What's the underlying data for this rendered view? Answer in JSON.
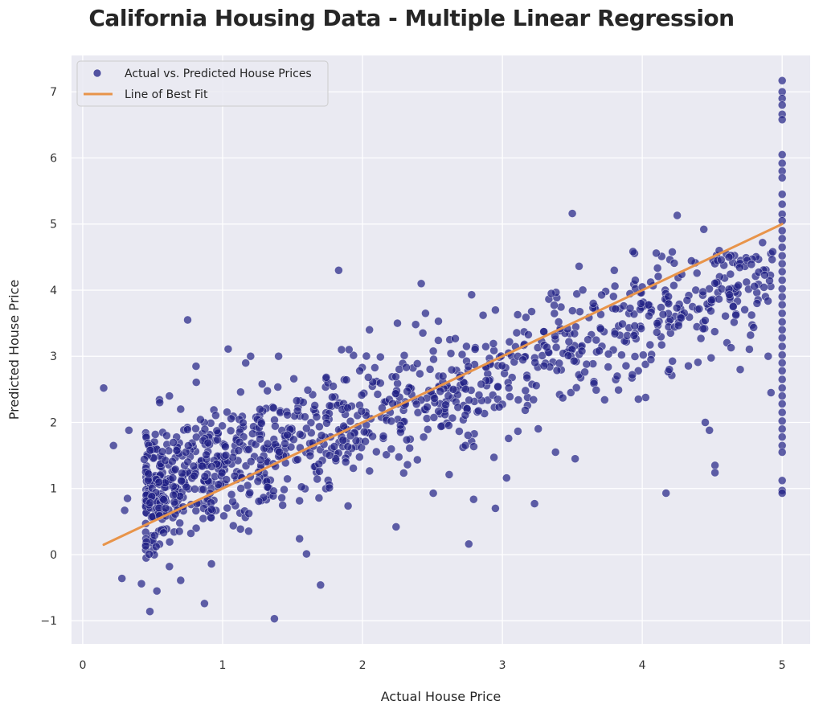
{
  "chart_data": {
    "type": "scatter",
    "title": "California Housing Data - Multiple Linear Regression",
    "xlabel": "Actual House Price",
    "ylabel": "Predicted House Price",
    "xlim": [
      -0.08,
      5.2
    ],
    "ylim": [
      -1.35,
      7.55
    ],
    "xticks": [
      0,
      1,
      2,
      3,
      4,
      5
    ],
    "yticks": [
      -1,
      0,
      1,
      2,
      3,
      4,
      5,
      6,
      7
    ],
    "xtick_labels": [
      "0",
      "1",
      "2",
      "3",
      "4",
      "5"
    ],
    "ytick_labels": [
      "−1",
      "0",
      "1",
      "2",
      "3",
      "4",
      "5",
      "6",
      "7"
    ],
    "grid": true,
    "legend_position": "top-left",
    "colors": {
      "background": "#eaeaf2",
      "grid": "#ffffff",
      "scatter": "#1f1f85",
      "line": "#e8944a"
    },
    "series": [
      {
        "name": "Actual vs. Predicted House Prices",
        "kind": "scatter",
        "generated_cluster": {
          "x_min": 0.45,
          "x_max": 4.95,
          "slope": 0.75,
          "intercept": 0.55,
          "noise_sd": 0.45,
          "count": 1100
        },
        "points": [
          [
            0.15,
            2.52
          ],
          [
            0.22,
            1.65
          ],
          [
            0.28,
            -0.36
          ],
          [
            0.3,
            0.67
          ],
          [
            0.32,
            0.85
          ],
          [
            0.33,
            1.88
          ],
          [
            0.42,
            -0.44
          ],
          [
            0.44,
            1.44
          ],
          [
            0.48,
            -0.86
          ],
          [
            0.47,
            1.22
          ],
          [
            0.53,
            -0.55
          ],
          [
            0.75,
            3.55
          ],
          [
            0.81,
            2.85
          ],
          [
            0.87,
            -0.74
          ],
          [
            1.04,
            3.11
          ],
          [
            1.37,
            -0.97
          ],
          [
            1.7,
            -0.46
          ],
          [
            1.83,
            4.3
          ],
          [
            2.24,
            0.42
          ],
          [
            2.42,
            4.1
          ],
          [
            2.76,
            0.16
          ],
          [
            2.95,
            0.7
          ],
          [
            3.23,
            0.77
          ],
          [
            3.5,
            5.16
          ],
          [
            3.38,
            1.55
          ],
          [
            4.17,
            0.93
          ],
          [
            4.25,
            5.13
          ],
          [
            4.1,
            4.56
          ],
          [
            4.44,
            4.92
          ],
          [
            4.52,
            1.35
          ],
          [
            4.52,
            1.24
          ],
          [
            3.95,
            4.15
          ],
          [
            4.62,
            4.5
          ],
          [
            4.78,
            4.39
          ],
          [
            4.86,
            4.72
          ],
          [
            4.92,
            2.45
          ],
          [
            1.55,
            0.24
          ],
          [
            1.6,
            0.01
          ],
          [
            0.7,
            -0.39
          ],
          [
            0.62,
            -0.18
          ],
          [
            0.92,
            -0.14
          ],
          [
            2.62,
            1.21
          ],
          [
            3.03,
            1.16
          ],
          [
            2.78,
            3.93
          ],
          [
            3.52,
            1.45
          ],
          [
            4.45,
            2.0
          ],
          [
            4.48,
            1.88
          ],
          [
            4.65,
            3.75
          ],
          [
            4.7,
            2.8
          ],
          [
            4.82,
            3.8
          ],
          [
            4.9,
            3.0
          ],
          [
            3.8,
            4.3
          ],
          [
            4.0,
            4.05
          ],
          [
            3.65,
            3.8
          ],
          [
            3.35,
            3.95
          ],
          [
            2.95,
            3.7
          ],
          [
            0.55,
            2.3
          ],
          [
            0.62,
            2.4
          ],
          [
            0.7,
            2.2
          ],
          [
            0.6,
            1.8
          ],
          [
            1.2,
            3.0
          ],
          [
            1.4,
            3.0
          ],
          [
            1.85,
            3.1
          ],
          [
            2.05,
            3.4
          ],
          [
            2.25,
            3.5
          ],
          [
            2.45,
            3.65
          ],
          [
            5.0,
            7.17
          ],
          [
            5.0,
            7.0
          ],
          [
            5.0,
            6.9
          ],
          [
            5.0,
            6.8
          ],
          [
            5.0,
            6.66
          ],
          [
            5.0,
            6.58
          ],
          [
            5.0,
            6.05
          ],
          [
            5.0,
            5.92
          ],
          [
            5.0,
            5.8
          ],
          [
            5.0,
            5.7
          ],
          [
            5.0,
            5.45
          ],
          [
            5.0,
            5.3
          ],
          [
            5.0,
            5.15
          ],
          [
            5.0,
            5.05
          ],
          [
            5.0,
            4.9
          ],
          [
            5.0,
            4.78
          ],
          [
            5.0,
            4.65
          ],
          [
            5.0,
            4.52
          ],
          [
            5.0,
            4.4
          ],
          [
            5.0,
            4.28
          ],
          [
            5.0,
            4.15
          ],
          [
            5.0,
            4.02
          ],
          [
            5.0,
            3.9
          ],
          [
            5.0,
            3.78
          ],
          [
            5.0,
            3.65
          ],
          [
            5.0,
            3.52
          ],
          [
            5.0,
            3.4
          ],
          [
            5.0,
            3.28
          ],
          [
            5.0,
            3.15
          ],
          [
            5.0,
            3.02
          ],
          [
            5.0,
            2.9
          ],
          [
            5.0,
            2.78
          ],
          [
            5.0,
            2.65
          ],
          [
            5.0,
            2.52
          ],
          [
            5.0,
            2.4
          ],
          [
            5.0,
            2.28
          ],
          [
            5.0,
            2.15
          ],
          [
            5.0,
            2.02
          ],
          [
            5.0,
            1.9
          ],
          [
            5.0,
            1.78
          ],
          [
            5.0,
            1.65
          ],
          [
            5.0,
            1.55
          ],
          [
            5.0,
            1.12
          ],
          [
            5.0,
            0.97
          ],
          [
            5.0,
            0.93
          ]
        ]
      },
      {
        "name": "Line of Best Fit",
        "kind": "line",
        "x": [
          0.15,
          5.0
        ],
        "y": [
          0.15,
          5.0
        ]
      }
    ]
  }
}
